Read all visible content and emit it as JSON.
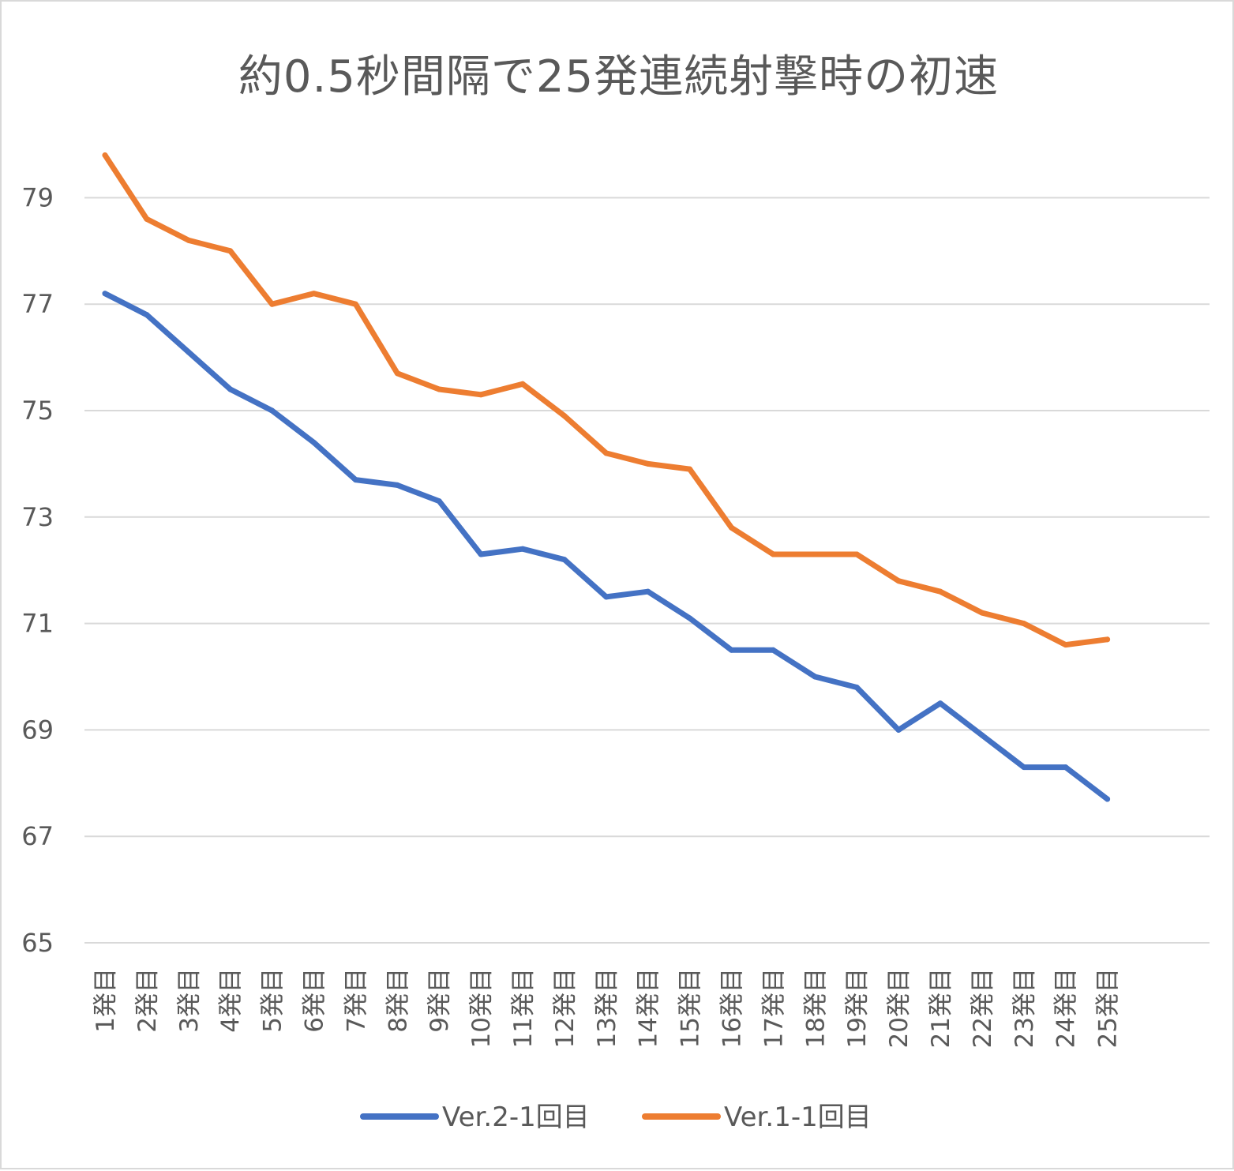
{
  "chart_data": {
    "type": "line",
    "title": "約0.5秒間隔で25発連続射撃時の初速",
    "xlabel": "",
    "ylabel": "",
    "categories": [
      "1発目",
      "2発目",
      "3発目",
      "4発目",
      "5発目",
      "6発目",
      "7発目",
      "8発目",
      "9発目",
      "10発目",
      "11発目",
      "12発目",
      "13発目",
      "14発目",
      "15発目",
      "16発目",
      "17発目",
      "18発目",
      "19発目",
      "20発目",
      "21発目",
      "22発目",
      "23発目",
      "24発目",
      "25発目"
    ],
    "ylim": [
      65,
      81
    ],
    "yticks": [
      65,
      67,
      69,
      71,
      73,
      75,
      77,
      79
    ],
    "grid": true,
    "legend_position": "bottom",
    "series": [
      {
        "name": "Ver.2-1回目",
        "color": "#4472C4",
        "values": [
          77.2,
          76.8,
          76.1,
          75.4,
          75.0,
          74.4,
          73.7,
          73.6,
          73.3,
          72.3,
          72.4,
          72.2,
          71.5,
          71.6,
          71.1,
          70.5,
          70.5,
          70.0,
          69.8,
          69.0,
          69.5,
          68.9,
          68.3,
          68.3,
          67.7
        ]
      },
      {
        "name": "Ver.1-1回目",
        "color": "#ED7D31",
        "values": [
          79.8,
          78.6,
          78.2,
          78.0,
          77.0,
          77.2,
          77.0,
          75.7,
          75.4,
          75.3,
          75.5,
          74.9,
          74.2,
          74.0,
          73.9,
          72.8,
          72.3,
          72.3,
          72.3,
          71.8,
          71.6,
          71.2,
          71.0,
          70.6,
          70.7
        ]
      }
    ]
  }
}
